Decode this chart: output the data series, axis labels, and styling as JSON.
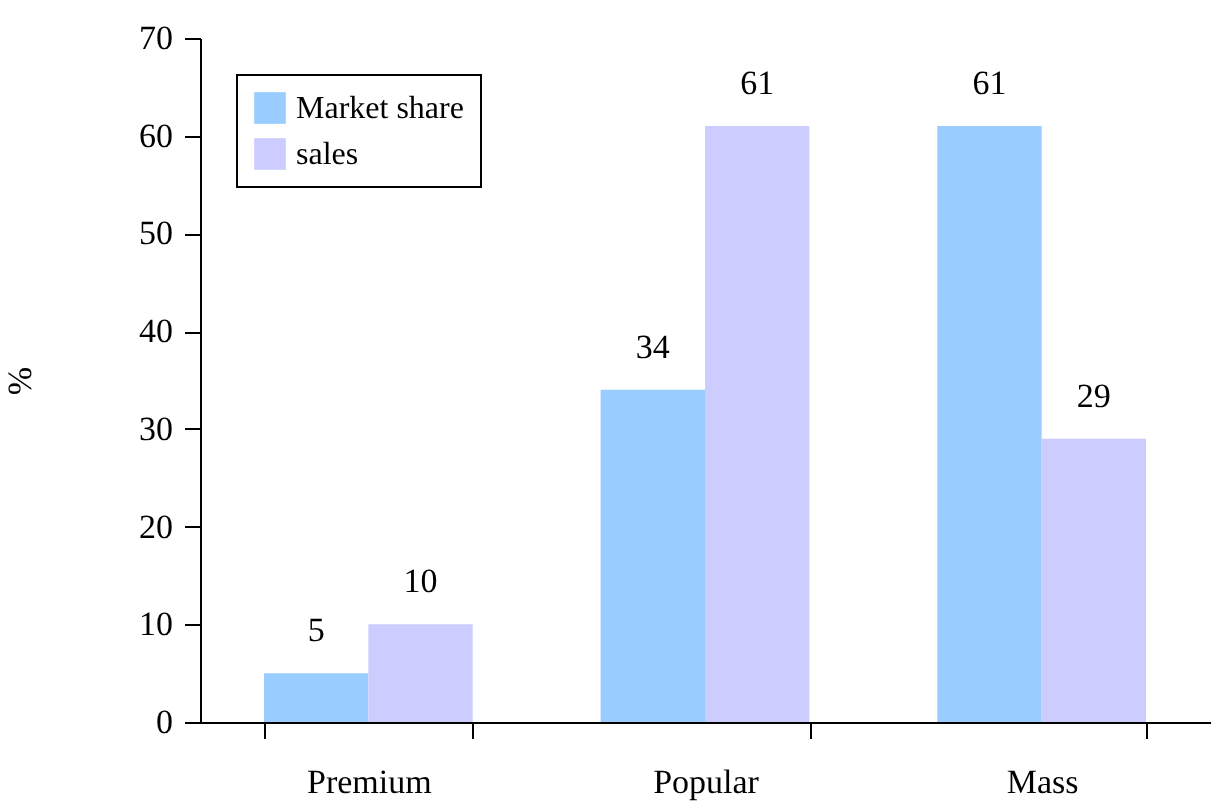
{
  "chart_data": {
    "type": "bar",
    "ylabel": "%",
    "categories": [
      "Premium",
      "Popular",
      "Mass"
    ],
    "series": [
      {
        "name": "Market share",
        "color": "#99ccff",
        "values": [
          5,
          34,
          61
        ]
      },
      {
        "name": "sales",
        "color": "#ccccff",
        "values": [
          10,
          61,
          29
        ]
      }
    ],
    "ylim": [
      0,
      70
    ],
    "yticks": [
      0,
      10,
      20,
      30,
      40,
      50,
      60,
      70
    ],
    "grid": false,
    "legend": "top left",
    "data_labels": true
  }
}
